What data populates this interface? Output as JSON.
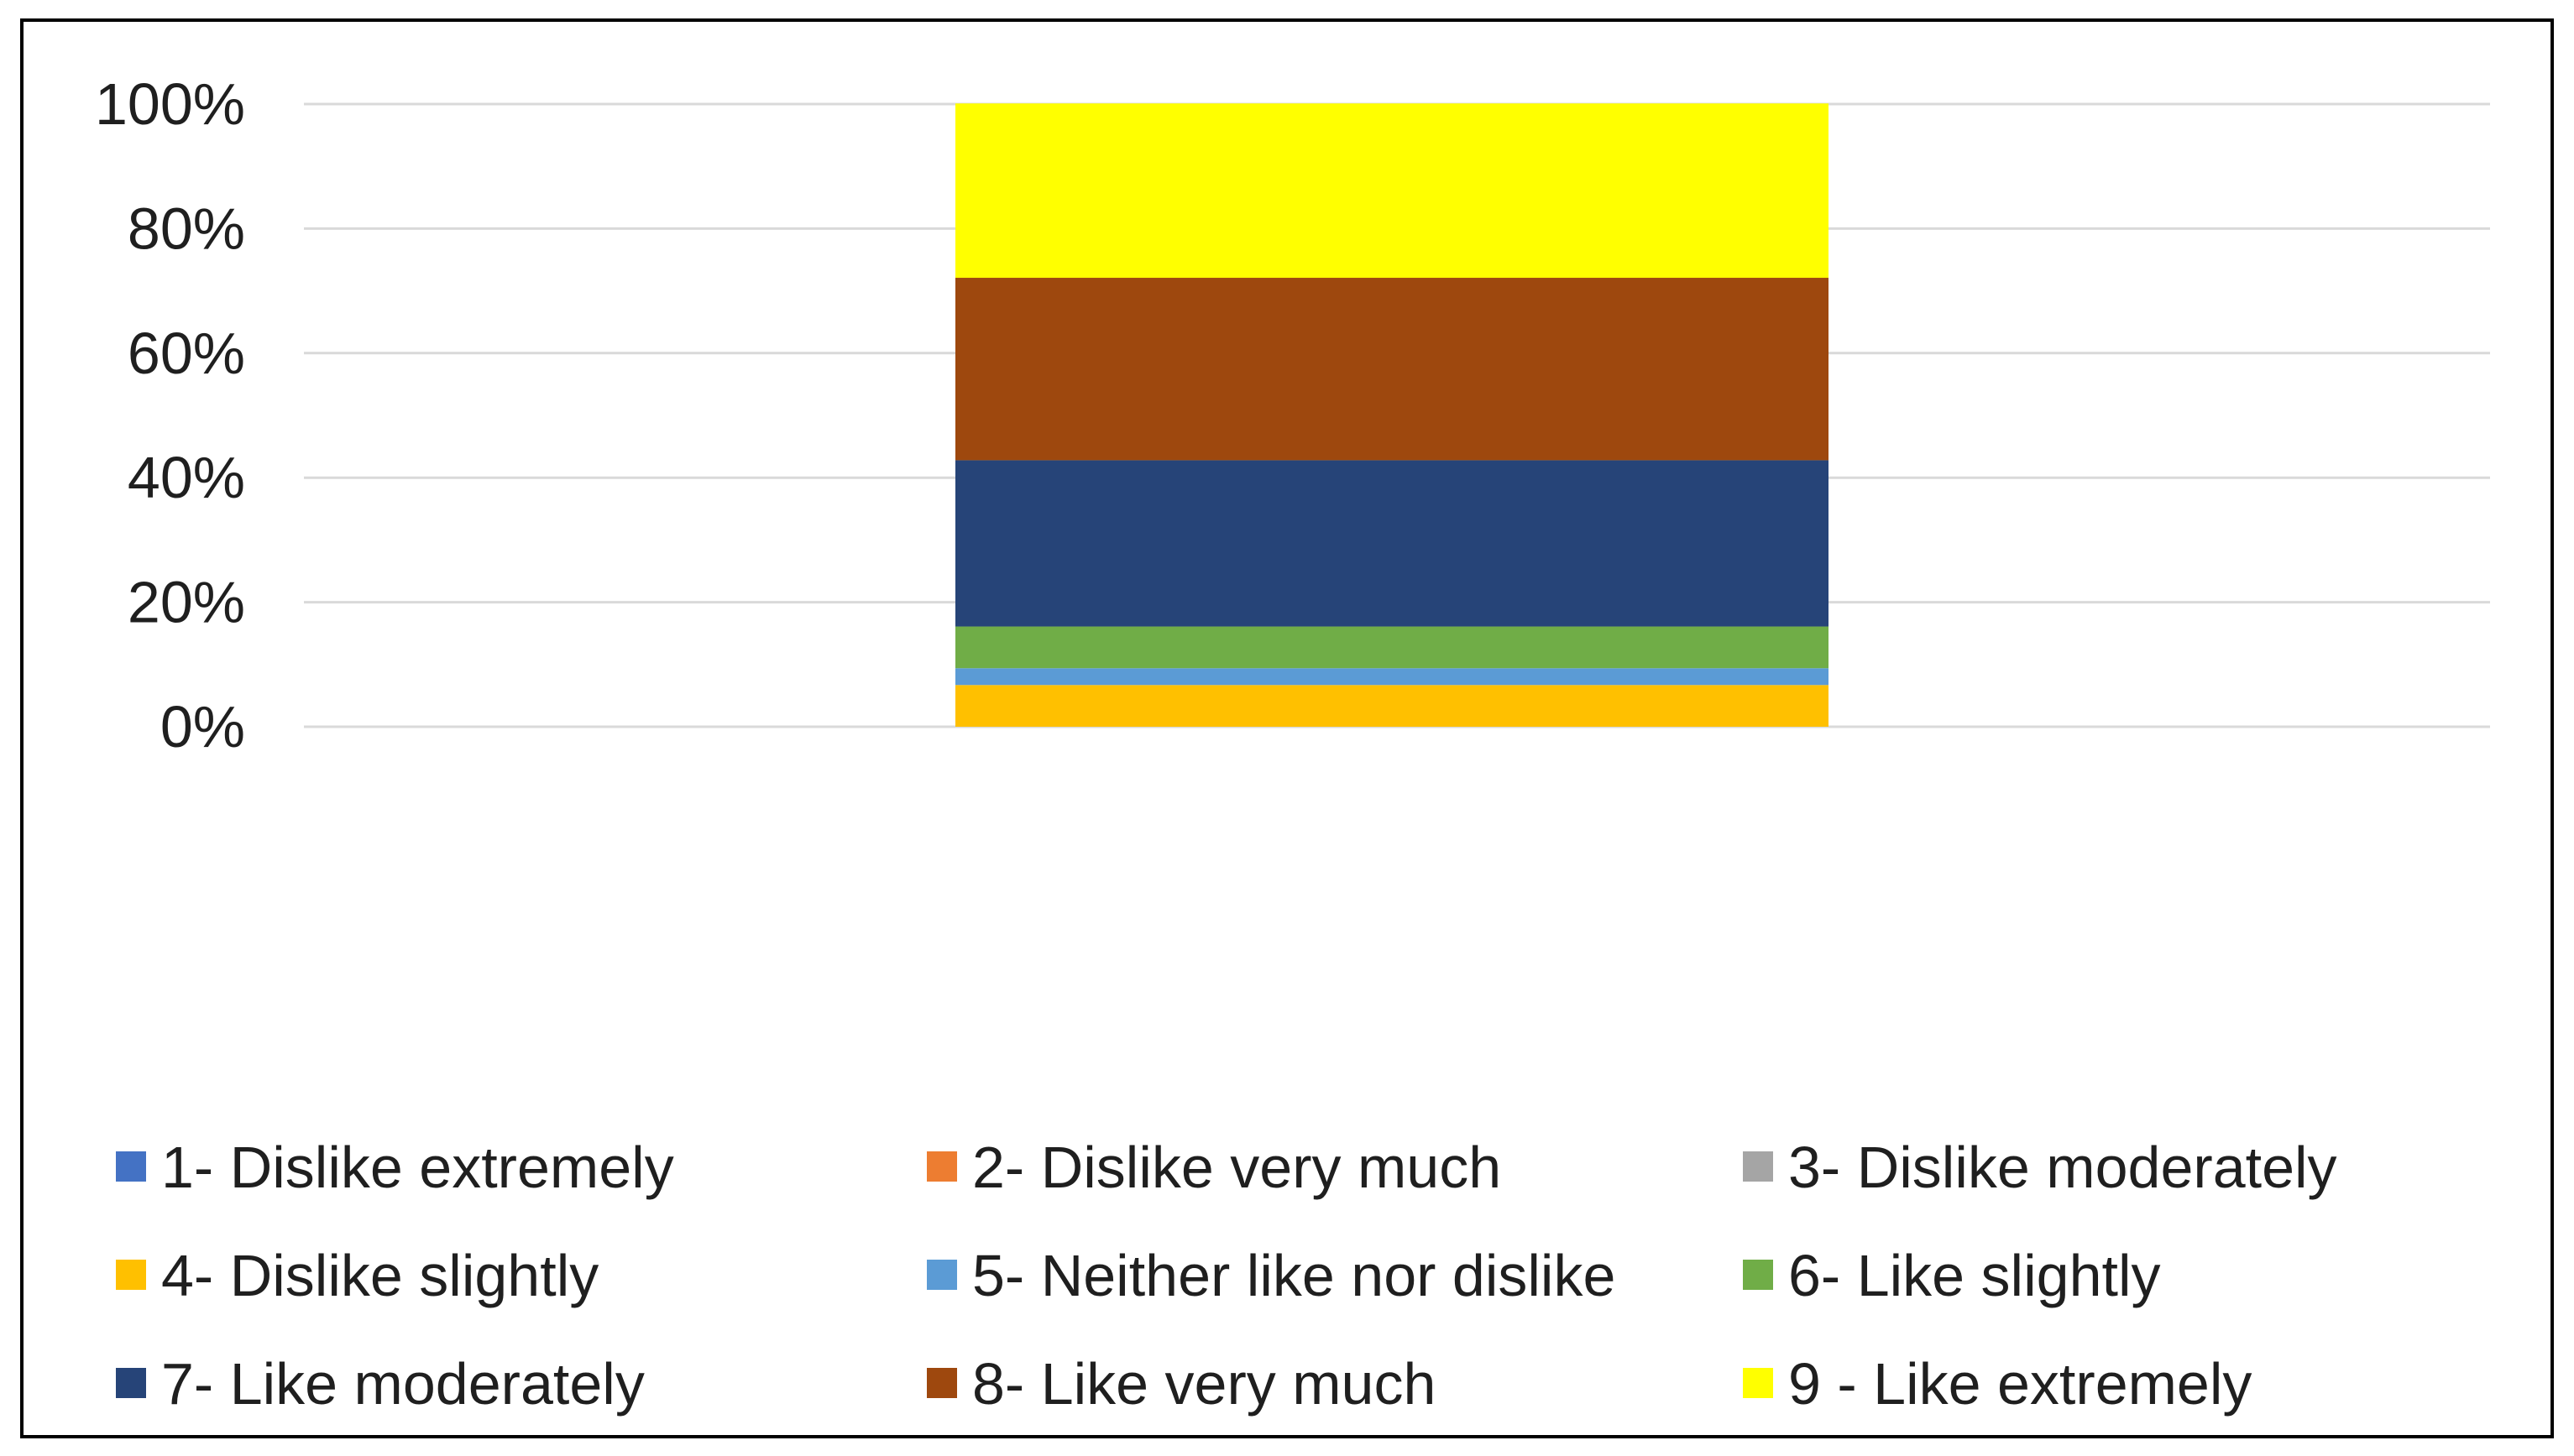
{
  "chart_data": {
    "type": "bar",
    "stacked": true,
    "percent_stacked": true,
    "categories": [
      ""
    ],
    "ylim": [
      0,
      100
    ],
    "y_ticks": [
      "0%",
      "20%",
      "40%",
      "60%",
      "80%",
      "100%"
    ],
    "y_tick_values": [
      0,
      20,
      40,
      60,
      80,
      100
    ],
    "grid": true,
    "legend_position": "bottom",
    "series": [
      {
        "name": "1- Dislike extremely",
        "values": [
          0
        ],
        "color": "#4472C4"
      },
      {
        "name": "2- Dislike very much",
        "values": [
          0
        ],
        "color": "#ED7D31"
      },
      {
        "name": "3- Dislike moderately",
        "values": [
          0
        ],
        "color": "#A5A5A5"
      },
      {
        "name": "4- Dislike slightly",
        "values": [
          6.7
        ],
        "color": "#FFC000"
      },
      {
        "name": "5- Neither like nor dislike",
        "values": [
          2.7
        ],
        "color": "#5B9BD5"
      },
      {
        "name": "6- Like slightly",
        "values": [
          6.7
        ],
        "color": "#70AD47"
      },
      {
        "name": "7- Like moderately",
        "values": [
          26.7
        ],
        "color": "#264478"
      },
      {
        "name": "8- Like very much",
        "values": [
          29.3
        ],
        "color": "#9E480E"
      },
      {
        "name": "9 - Like extremely",
        "values": [
          28.0
        ],
        "color": "#FFFF00"
      }
    ]
  }
}
